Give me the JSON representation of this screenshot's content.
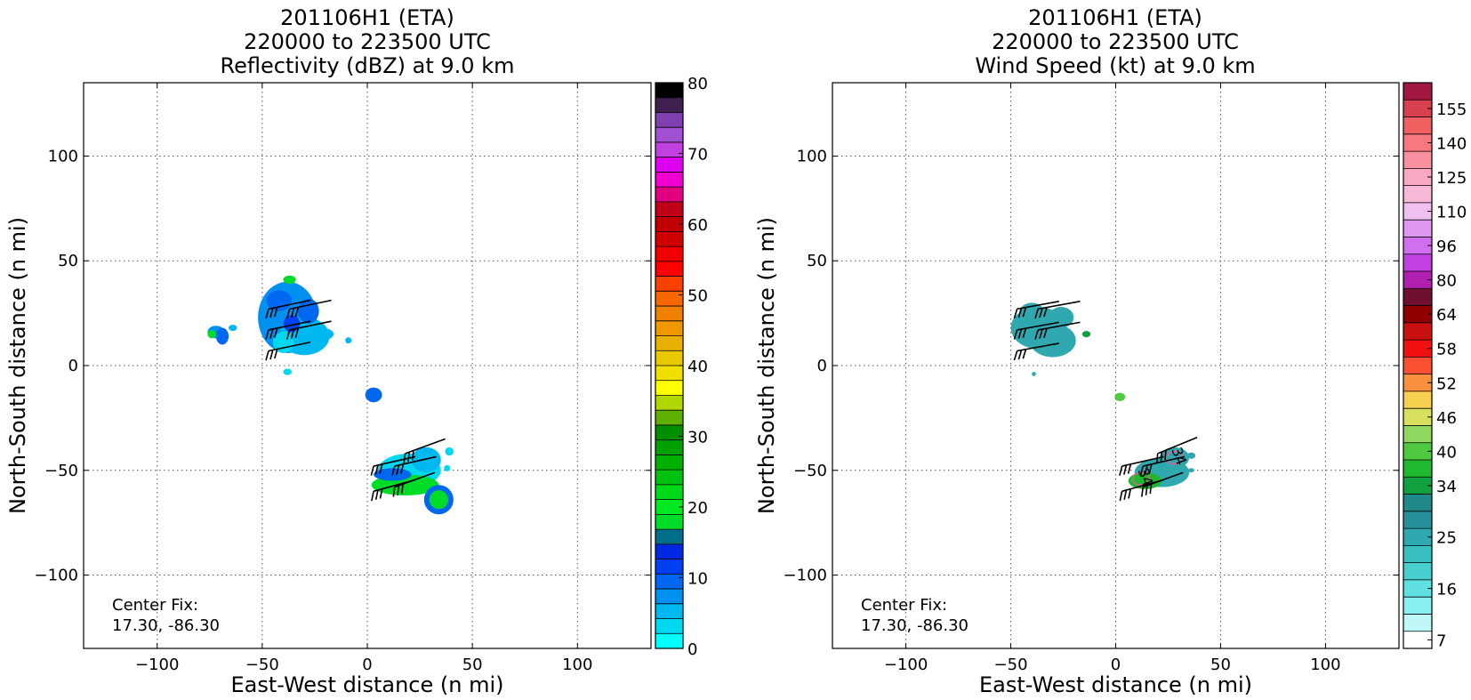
{
  "chart_data": [
    {
      "type": "heatmap",
      "title_lines": [
        "201106H1 (ETA)",
        "220000 to 223500 UTC",
        "Reflectivity (dBZ) at 9.0 km"
      ],
      "xlabel": "East-West distance (n mi)",
      "ylabel": "North-South distance (n mi)",
      "xlim": [
        -135,
        135
      ],
      "ylim": [
        -135,
        135
      ],
      "xticks": [
        -100,
        -50,
        0,
        50,
        100
      ],
      "yticks": [
        -100,
        -50,
        0,
        50,
        100
      ],
      "xtick_labels": [
        "−100",
        "−50",
        "0",
        "50",
        "100"
      ],
      "ytick_labels": [
        "−100",
        "−50",
        "0",
        "50",
        "100"
      ],
      "grid": true,
      "annotation_lines": [
        "Center Fix:",
        "17.30, -86.30"
      ],
      "colorbar": {
        "min": 0,
        "max": 80,
        "step": 2.5,
        "tick_values": [
          0,
          10,
          20,
          30,
          40,
          50,
          60,
          70,
          80
        ],
        "tick_labels": [
          "0",
          "10",
          "20",
          "30",
          "40",
          "50",
          "60",
          "70",
          "80"
        ],
        "colors": [
          "#00ffff",
          "#00d8f0",
          "#00b8f0",
          "#0090f0",
          "#0068f0",
          "#0040f0",
          "#0028e0",
          "#006e88",
          "#00dc28",
          "#00e820",
          "#00d818",
          "#00c010",
          "#00b000",
          "#00a000",
          "#008e00",
          "#60b000",
          "#b0d800",
          "#ffff00",
          "#f0e000",
          "#e8c800",
          "#e8b000",
          "#f09800",
          "#f08000",
          "#f86800",
          "#f84000",
          "#ff0000",
          "#f00000",
          "#d00000",
          "#c00000",
          "#c00018",
          "#e00080",
          "#f000d0",
          "#e000f0",
          "#c040e0",
          "#a050d0",
          "#8040b0",
          "#402050",
          "#000000"
        ]
      },
      "cells": [
        {
          "x": -72,
          "y": 16,
          "rx": 4,
          "ry": 3,
          "value": 8
        },
        {
          "x": -69,
          "y": 14,
          "rx": 3,
          "ry": 4,
          "value": 12
        },
        {
          "x": -74,
          "y": 15,
          "rx": 2,
          "ry": 2,
          "value": 22
        },
        {
          "x": -64,
          "y": 18,
          "rx": 2,
          "ry": 1.5,
          "value": 5
        },
        {
          "x": -38,
          "y": 23,
          "rx": 14,
          "ry": 17,
          "value": 8
        },
        {
          "x": -30,
          "y": 14,
          "rx": 12,
          "ry": 9,
          "value": 6
        },
        {
          "x": -42,
          "y": 31,
          "rx": 6,
          "ry": 5,
          "value": 12
        },
        {
          "x": -36,
          "y": 20,
          "rx": 4,
          "ry": 4,
          "value": 14
        },
        {
          "x": -28,
          "y": 26,
          "rx": 5,
          "ry": 6,
          "value": 12
        },
        {
          "x": -40,
          "y": 11,
          "rx": 5,
          "ry": 5,
          "value": 4
        },
        {
          "x": -37,
          "y": 41,
          "rx": 3,
          "ry": 2,
          "value": 22
        },
        {
          "x": -22,
          "y": 15,
          "rx": 6,
          "ry": 3,
          "value": 5
        },
        {
          "x": -38,
          "y": -3,
          "rx": 2,
          "ry": 1.5,
          "value": 4
        },
        {
          "x": -9,
          "y": 12,
          "rx": 1.5,
          "ry": 1.5,
          "value": 5
        },
        {
          "x": 3,
          "y": -14,
          "rx": 4,
          "ry": 3.5,
          "value": 10
        },
        {
          "x": 20,
          "y": -50,
          "rx": 15,
          "ry": 8,
          "value": 4
        },
        {
          "x": 28,
          "y": -45,
          "rx": 7,
          "ry": 6,
          "value": 5
        },
        {
          "x": 18,
          "y": -57,
          "rx": 16,
          "ry": 5,
          "value": 20
        },
        {
          "x": 34,
          "y": -64,
          "rx": 7,
          "ry": 7,
          "value": 12
        },
        {
          "x": 34,
          "y": -64,
          "rx": 4.5,
          "ry": 4.5,
          "value": 20
        },
        {
          "x": 12,
          "y": -52,
          "rx": 9,
          "ry": 3,
          "value": 12
        },
        {
          "x": 39,
          "y": -41,
          "rx": 2,
          "ry": 2,
          "value": 4
        },
        {
          "x": 38,
          "y": -49,
          "rx": 1.5,
          "ry": 1.5,
          "value": 4
        }
      ],
      "barbs": [
        {
          "x": -47,
          "y": 27,
          "u": 24,
          "v": 5
        },
        {
          "x": -37,
          "y": 27,
          "u": 24,
          "v": 5
        },
        {
          "x": -47,
          "y": 17,
          "u": 24,
          "v": 5
        },
        {
          "x": -37,
          "y": 17,
          "u": 24,
          "v": 5
        },
        {
          "x": -47,
          "y": 7,
          "u": 24,
          "v": 5
        },
        {
          "x": 3,
          "y": -48,
          "u": 22,
          "v": 5
        },
        {
          "x": 13,
          "y": -48,
          "u": 22,
          "v": 5
        },
        {
          "x": 18,
          "y": -42,
          "u": 22,
          "v": 8
        },
        {
          "x": 3,
          "y": -60,
          "u": 22,
          "v": 6
        },
        {
          "x": 13,
          "y": -58,
          "u": 22,
          "v": 8
        }
      ],
      "contours": []
    },
    {
      "type": "heatmap",
      "title_lines": [
        "201106H1 (ETA)",
        "220000 to 223500 UTC",
        "Wind Speed (kt) at 9.0 km"
      ],
      "xlabel": "East-West distance (n mi)",
      "ylabel": "North-South distance (n mi)",
      "xlim": [
        -135,
        135
      ],
      "ylim": [
        -135,
        135
      ],
      "xticks": [
        -100,
        -50,
        0,
        50,
        100
      ],
      "yticks": [
        -100,
        -50,
        0,
        50,
        100
      ],
      "xtick_labels": [
        "−100",
        "−50",
        "0",
        "50",
        "100"
      ],
      "ytick_labels": [
        "−100",
        "−50",
        "0",
        "50",
        "100"
      ],
      "grid": true,
      "annotation_lines": [
        "Center Fix:",
        "17.30, -86.30"
      ],
      "colorbar": {
        "min": 7,
        "max": 160,
        "step": 0,
        "tick_values": [
          7,
          16,
          25,
          34,
          40,
          46,
          52,
          58,
          64,
          80,
          96,
          110,
          125,
          140,
          155
        ],
        "tick_labels": [
          "7",
          "16",
          "25",
          "34",
          "40",
          "46",
          "52",
          "58",
          "64",
          "80",
          "96",
          "110",
          "125",
          "140",
          "155"
        ],
        "levels": [
          7,
          10,
          13,
          16,
          19,
          22,
          25,
          28,
          31,
          34,
          37,
          40,
          43,
          46,
          49,
          52,
          55,
          58,
          61,
          64,
          72,
          80,
          88,
          96,
          103,
          110,
          118,
          125,
          133,
          140,
          148,
          155,
          160
        ],
        "colors": [
          "#ffffff",
          "#c0f8f8",
          "#88f0f0",
          "#60e0e0",
          "#48d0d0",
          "#38c0c0",
          "#30a8b0",
          "#289098",
          "#208888",
          "#10a040",
          "#20b830",
          "#50c840",
          "#90d860",
          "#d8e060",
          "#f8d050",
          "#f89040",
          "#f85030",
          "#f01010",
          "#c81010",
          "#900000",
          "#701030",
          "#b020b0",
          "#c040e0",
          "#d070f0",
          "#e098f0",
          "#f0c0f0",
          "#f8b8d8",
          "#f8a8c0",
          "#f890a0",
          "#f87880",
          "#f06060",
          "#d84050",
          "#a01840"
        ]
      },
      "cells": [
        {
          "x": -37,
          "y": 18,
          "rx": 13,
          "ry": 10,
          "value": 27
        },
        {
          "x": -30,
          "y": 12,
          "rx": 11,
          "ry": 8,
          "value": 27
        },
        {
          "x": -26,
          "y": 23,
          "rx": 6,
          "ry": 5,
          "value": 27
        },
        {
          "x": -40,
          "y": 25,
          "rx": 6,
          "ry": 5,
          "value": 27
        },
        {
          "x": -14,
          "y": 15,
          "rx": 2,
          "ry": 1.5,
          "value": 35
        },
        {
          "x": -39,
          "y": -4,
          "rx": 1,
          "ry": 1,
          "value": 27
        },
        {
          "x": 2,
          "y": -15,
          "rx": 2.5,
          "ry": 2,
          "value": 41
        },
        {
          "x": 22,
          "y": -51,
          "rx": 13,
          "ry": 7,
          "value": 27
        },
        {
          "x": 28,
          "y": -44,
          "rx": 7,
          "ry": 5,
          "value": 27
        },
        {
          "x": 14,
          "y": -55,
          "rx": 8,
          "ry": 4,
          "value": 38
        },
        {
          "x": 36,
          "y": -43,
          "rx": 2,
          "ry": 1.5,
          "value": 27
        },
        {
          "x": 36,
          "y": -50,
          "rx": 1.5,
          "ry": 1,
          "value": 27
        }
      ],
      "barbs": [
        {
          "x": -47,
          "y": 27,
          "u": 22,
          "v": 4
        },
        {
          "x": -37,
          "y": 27,
          "u": 22,
          "v": 4
        },
        {
          "x": -47,
          "y": 17,
          "u": 22,
          "v": 4
        },
        {
          "x": -37,
          "y": 17,
          "u": 22,
          "v": 4
        },
        {
          "x": -47,
          "y": 7,
          "u": 22,
          "v": 4
        },
        {
          "x": 3,
          "y": -48,
          "u": 22,
          "v": 5
        },
        {
          "x": 13,
          "y": -48,
          "u": 22,
          "v": 5
        },
        {
          "x": 20,
          "y": -42,
          "u": 22,
          "v": 9
        },
        {
          "x": 3,
          "y": -60,
          "u": 22,
          "v": 6
        },
        {
          "x": 13,
          "y": -58,
          "u": 22,
          "v": 8
        }
      ],
      "contours": [
        {
          "label": "34",
          "x": 12,
          "y": -54,
          "color": "#e060a0"
        },
        {
          "label": "34",
          "x": 28,
          "y": -44,
          "color": "#e060a0"
        }
      ]
    }
  ]
}
